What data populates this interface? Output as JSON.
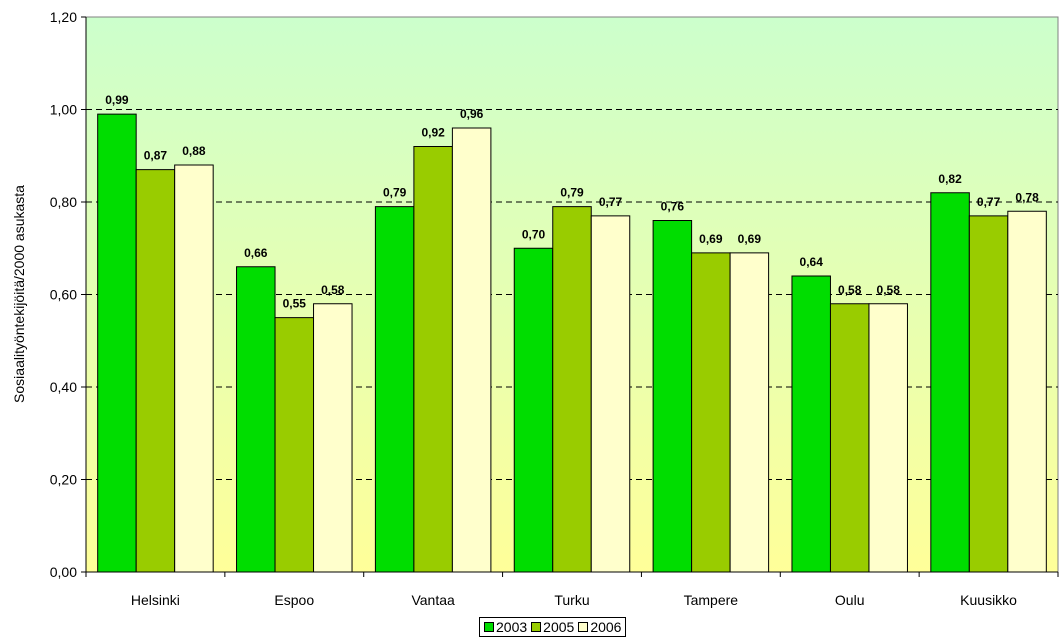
{
  "chart_data": {
    "type": "bar",
    "title": "",
    "xlabel": "",
    "ylabel": "Sosiaalityöntekijöitä/2000 asukasta",
    "ylim": [
      0,
      1.2
    ],
    "yticks": [
      "0,00",
      "0,20",
      "0,40",
      "0,60",
      "0,80",
      "1,00",
      "1,20"
    ],
    "grid": "dashed horizontal",
    "background": "gradient green (top) to yellow (bottom)",
    "legend_position": "bottom",
    "categories": [
      "Helsinki",
      "Espoo",
      "Vantaa",
      "Turku",
      "Tampere",
      "Oulu",
      "Kuusikko"
    ],
    "series": [
      {
        "name": "2003",
        "color": "#00dd00",
        "values": [
          0.99,
          0.66,
          0.79,
          0.7,
          0.76,
          0.64,
          0.82
        ],
        "labels": [
          "0,99",
          "0,66",
          "0,79",
          "0,70",
          "0,76",
          "0,64",
          "0,82"
        ]
      },
      {
        "name": "2005",
        "color": "#99cc00",
        "values": [
          0.87,
          0.55,
          0.92,
          0.79,
          0.69,
          0.58,
          0.77
        ],
        "labels": [
          "0,87",
          "0,55",
          "0,92",
          "0,79",
          "0,69",
          "0,58",
          "0,77"
        ]
      },
      {
        "name": "2006",
        "color": "#ffffcc",
        "values": [
          0.88,
          0.58,
          0.96,
          0.77,
          0.69,
          0.58,
          0.78
        ],
        "labels": [
          "0,88",
          "0,58",
          "0,96",
          "0,77",
          "0,69",
          "0,58",
          "0,78"
        ]
      }
    ]
  }
}
